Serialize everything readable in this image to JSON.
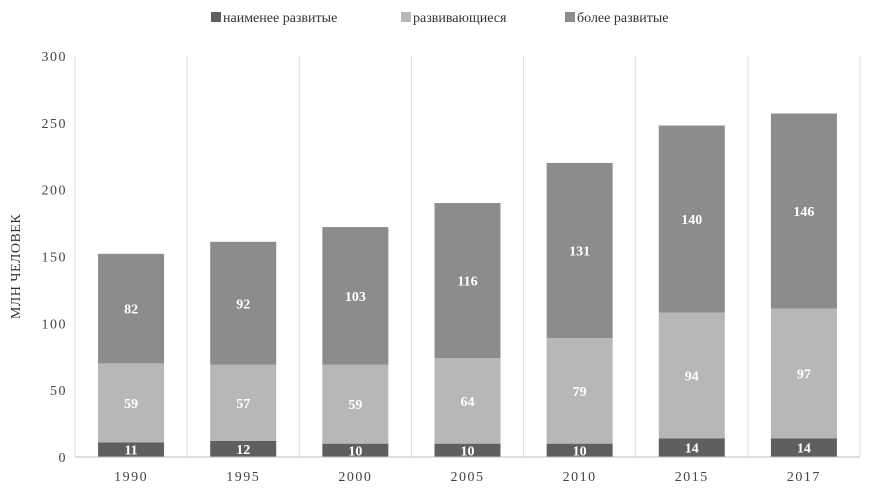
{
  "chart_data": {
    "type": "bar",
    "stacked": true,
    "categories": [
      "1990",
      "1995",
      "2000",
      "2005",
      "2010",
      "2015",
      "2017"
    ],
    "series": [
      {
        "name": "наименее развитые",
        "color": "#5f5f5f",
        "values": [
          11,
          12,
          10,
          10,
          10,
          14,
          14
        ]
      },
      {
        "name": "развивающиеся",
        "color": "#b7b7b7",
        "values": [
          59,
          57,
          59,
          64,
          79,
          94,
          97
        ]
      },
      {
        "name": "более развитые",
        "color": "#8c8c8c",
        "values": [
          82,
          92,
          103,
          116,
          131,
          140,
          146
        ]
      }
    ],
    "ylabel": "МЛН ЧЕЛОВЕК",
    "xlabel": "",
    "ylim": [
      0,
      300
    ],
    "yticks": [
      "0",
      "50",
      "100",
      "150",
      "200",
      "250",
      "300"
    ],
    "legend_position": "top",
    "grid": "vertical"
  }
}
